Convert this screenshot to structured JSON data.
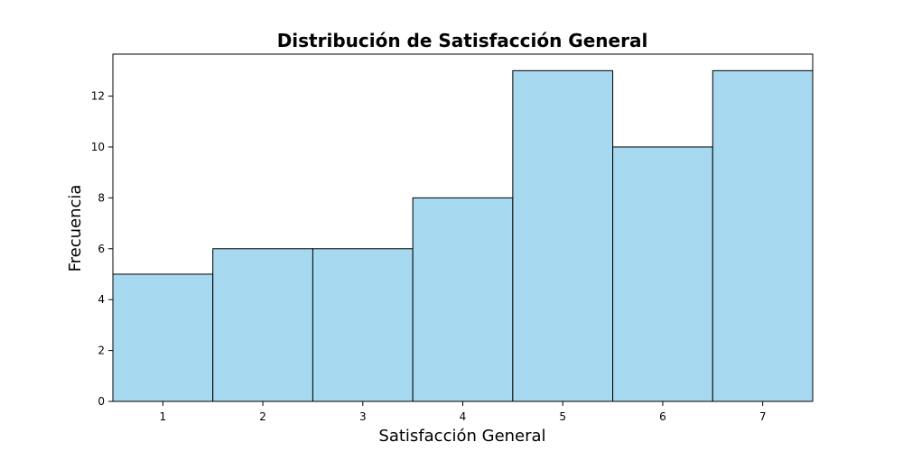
{
  "chart_data": {
    "type": "bar",
    "title": "Distribución de Satisfacción General",
    "xlabel": "Satisfacción General",
    "ylabel": "Frecuencia",
    "categories": [
      "1",
      "2",
      "3",
      "4",
      "5",
      "6",
      "7"
    ],
    "values": [
      5,
      6,
      6,
      8,
      13,
      10,
      13
    ],
    "ylim": [
      0,
      13.65
    ],
    "yticks": [
      "0",
      "2",
      "4",
      "6",
      "8",
      "10",
      "12"
    ],
    "bar_color": "#a6d9ef",
    "edge_color": "#000000",
    "grid": false,
    "legend": false
  }
}
